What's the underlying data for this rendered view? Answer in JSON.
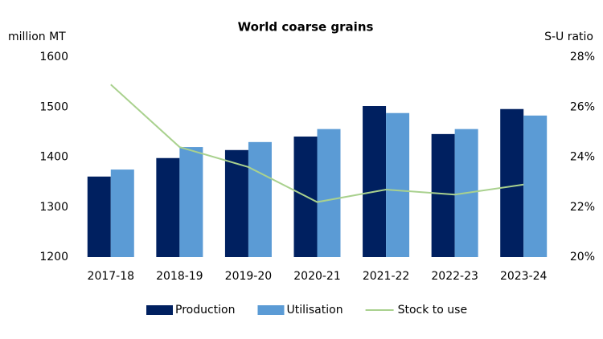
{
  "chart_data": {
    "type": "bar-line",
    "title": "World coarse grains",
    "y_label": "million MT",
    "y2_label": "S-U ratio",
    "categories": [
      "2017-18",
      "2018-19",
      "2019-20",
      "2020-21",
      "2021-22",
      "2022-23",
      "2023-24"
    ],
    "series": [
      {
        "name": "Production",
        "type": "bar",
        "color": "#002060",
        "values": [
          1361,
          1398,
          1414,
          1441,
          1502,
          1446,
          1496
        ]
      },
      {
        "name": "Utilisation",
        "type": "bar",
        "color": "#5b9bd5",
        "values": [
          1375,
          1420,
          1430,
          1456,
          1488,
          1456,
          1483
        ]
      },
      {
        "name": "Stock to use",
        "type": "line",
        "axis": "y2",
        "color": "#a9d18e",
        "values": [
          26.9,
          24.4,
          23.6,
          22.2,
          22.7,
          22.5,
          22.9
        ]
      }
    ],
    "ylim": [
      1200,
      1600
    ],
    "yticks": [
      1200,
      1300,
      1400,
      1500,
      1600
    ],
    "y2lim": [
      20,
      28
    ],
    "y2ticks": [
      {
        "value": 20,
        "label": "20%"
      },
      {
        "value": 22,
        "label": "22%"
      },
      {
        "value": 24,
        "label": "24%"
      },
      {
        "value": 26,
        "label": "26%"
      },
      {
        "value": 28,
        "label": "28%"
      }
    ],
    "legend": "bottom"
  }
}
